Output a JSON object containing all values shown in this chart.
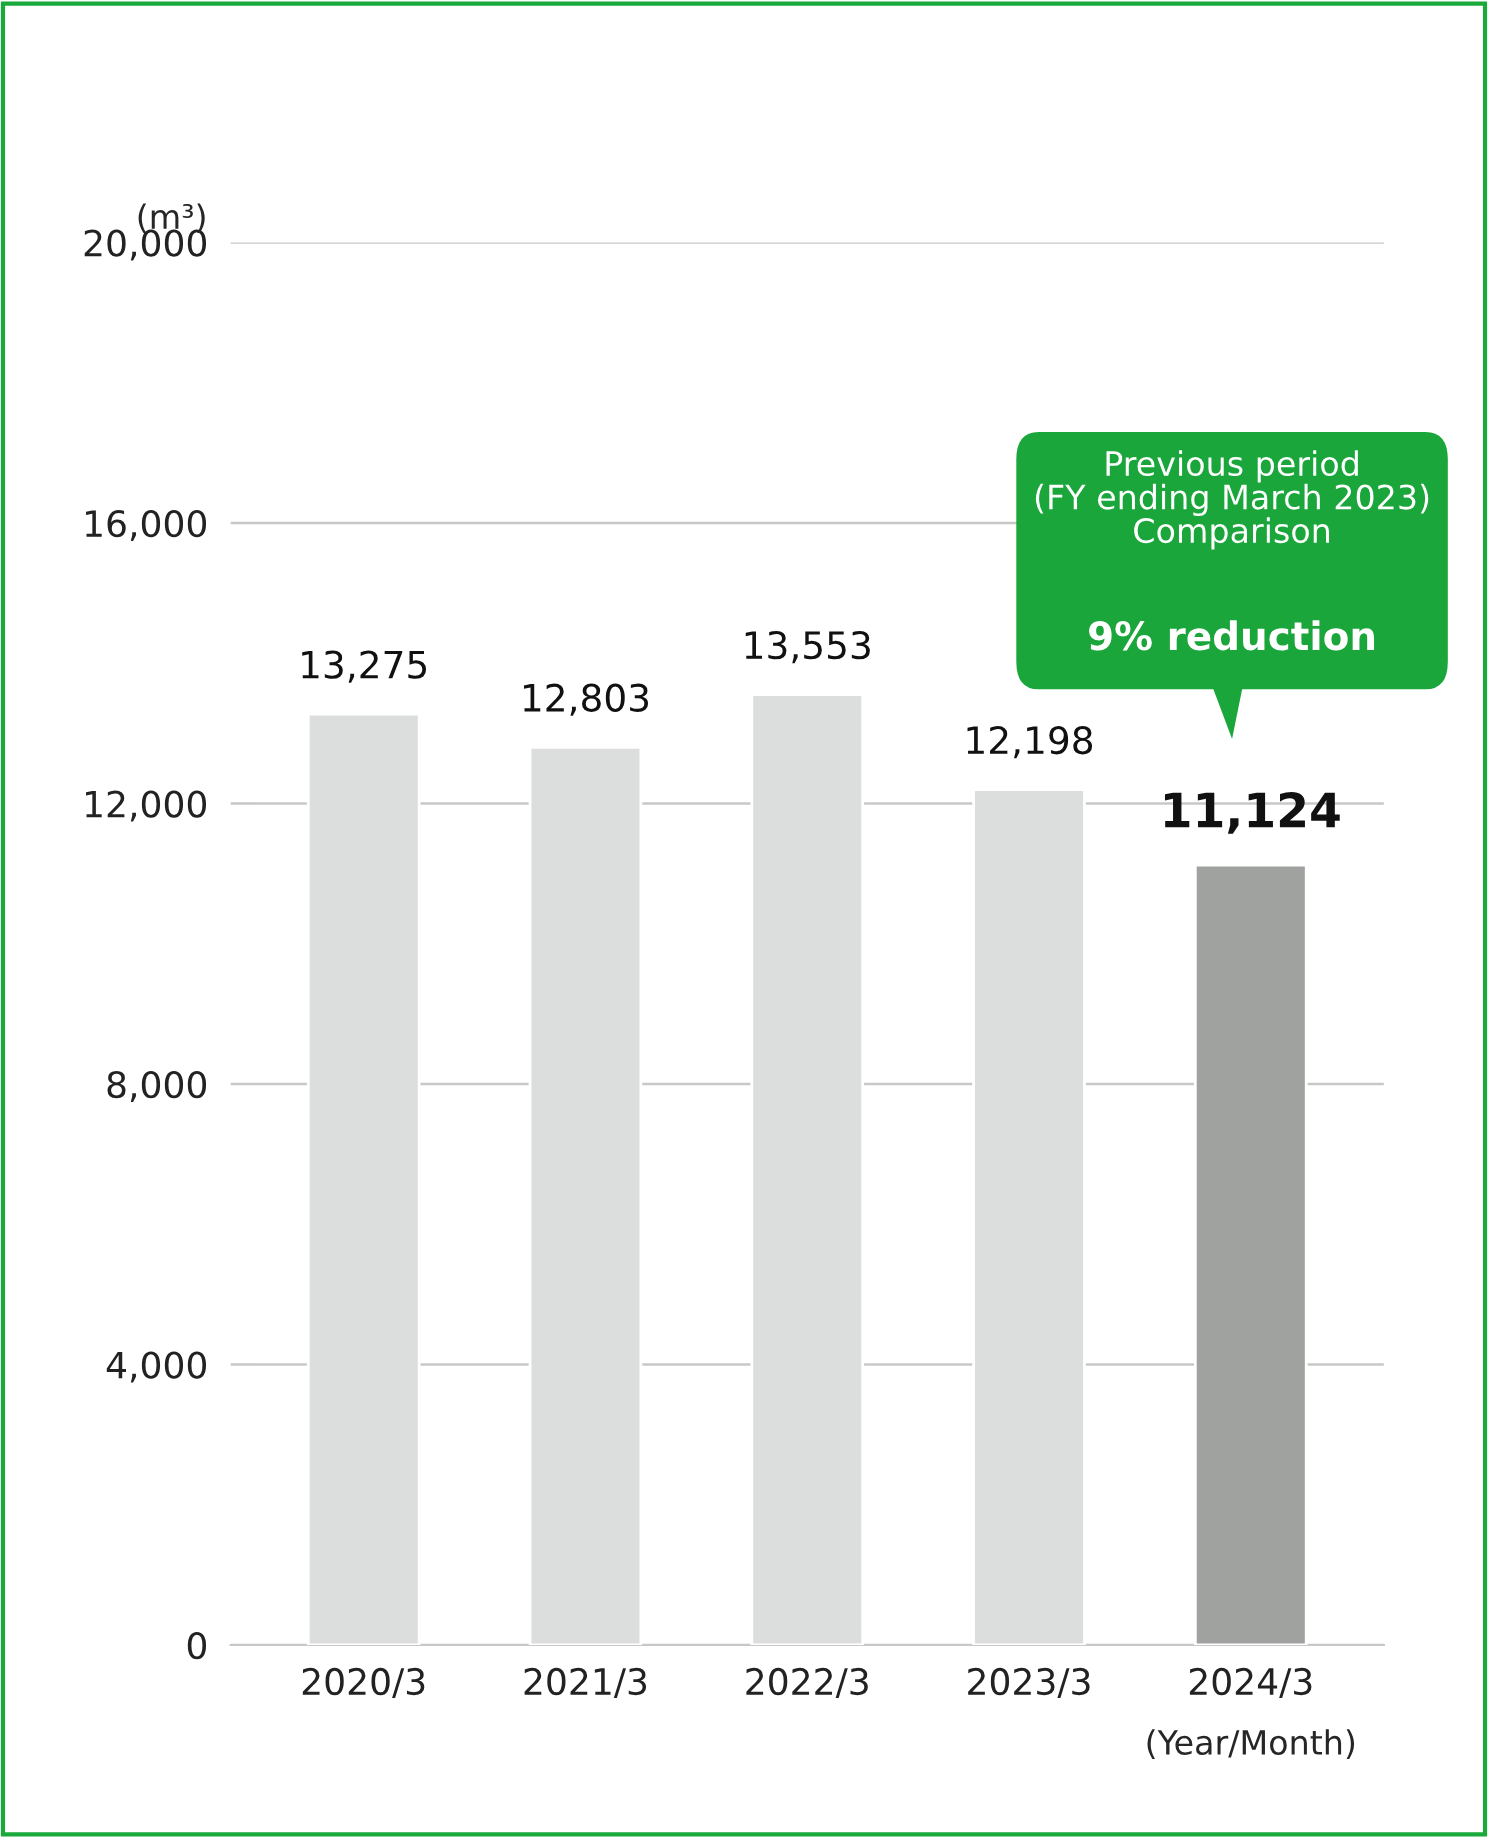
{
  "chart_data": {
    "type": "bar",
    "categories": [
      "2020/3",
      "2021/3",
      "2022/3",
      "2023/3",
      "2024/3"
    ],
    "values": [
      13275,
      12803,
      13553,
      12198,
      11124
    ],
    "colors": [
      "#dcdedd",
      "#dcdedd",
      "#dcdedd",
      "#dcdedd",
      "#a0a2a0"
    ],
    "value_labels": [
      "13,275",
      "12,803",
      "13,553",
      "12,198",
      "11,124"
    ],
    "ylabel": "(m³)",
    "xlabel": "(Year/Month)",
    "ylim": [
      0,
      20000
    ],
    "yticks": [
      {
        "value": 0,
        "label": "0"
      },
      {
        "value": 4000,
        "label": "4,000"
      },
      {
        "value": 8000,
        "label": "8,000"
      },
      {
        "value": 12000,
        "label": "12,000"
      },
      {
        "value": 16000,
        "label": "16,000"
      },
      {
        "value": 20000,
        "label": "20,000"
      }
    ],
    "grid": "y",
    "annotations": [
      "Previous period\n(FY ending March 2023)\nComparison",
      "9% reduction"
    ]
  }
}
